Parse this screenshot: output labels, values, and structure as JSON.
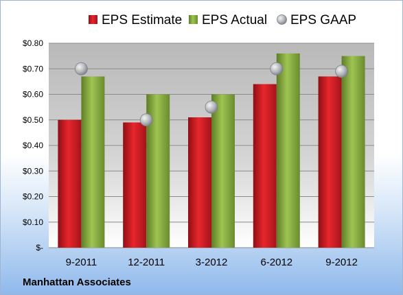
{
  "company": "Manhattan Associates",
  "colors": {
    "estimate": "#d42027",
    "actual": "#8cb044",
    "gaap": "#b8bcc2"
  },
  "chart_data": {
    "type": "bar",
    "categories": [
      "9-2011",
      "12-2011",
      "3-2012",
      "6-2012",
      "9-2012"
    ],
    "series": [
      {
        "name": "EPS Estimate",
        "type": "bar",
        "values": [
          0.5,
          0.49,
          0.51,
          0.64,
          0.67
        ]
      },
      {
        "name": "EPS Actual",
        "type": "bar",
        "values": [
          0.67,
          0.6,
          0.6,
          0.76,
          0.75
        ]
      },
      {
        "name": "EPS GAAP",
        "type": "scatter",
        "values": [
          0.7,
          0.5,
          0.55,
          0.7,
          0.69
        ]
      }
    ],
    "ylim": [
      0,
      0.8
    ],
    "yticks": [
      0,
      0.1,
      0.2,
      0.3,
      0.4,
      0.5,
      0.6,
      0.7,
      0.8
    ],
    "ytick_labels": [
      "$-",
      "$0.10",
      "$0.20",
      "$0.30",
      "$0.40",
      "$0.50",
      "$0.60",
      "$0.70",
      "$0.80"
    ],
    "legend": "top",
    "grid": true
  }
}
